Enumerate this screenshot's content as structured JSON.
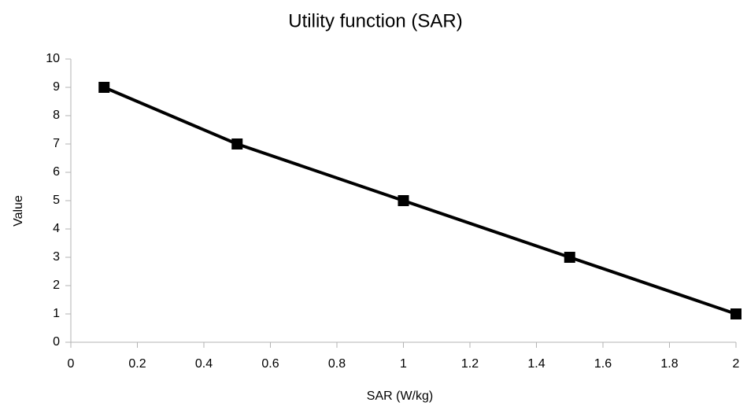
{
  "chart_data": {
    "type": "line",
    "title": "Utility function (SAR)",
    "xlabel": "SAR (W/kg)",
    "ylabel": "Value",
    "x": [
      0.1,
      0.5,
      1,
      1.5,
      2
    ],
    "values": [
      9,
      7,
      5,
      3,
      1
    ],
    "color": "#000000",
    "marker": "square",
    "xlim": [
      0,
      2
    ],
    "xticks": [
      0,
      0.2,
      0.4,
      0.6,
      0.8,
      1,
      1.2,
      1.4,
      1.6,
      1.8,
      2
    ],
    "ylim": [
      0,
      10
    ],
    "yticks": [
      0,
      1,
      2,
      3,
      4,
      5,
      6,
      7,
      8,
      9,
      10
    ],
    "grid": false
  }
}
